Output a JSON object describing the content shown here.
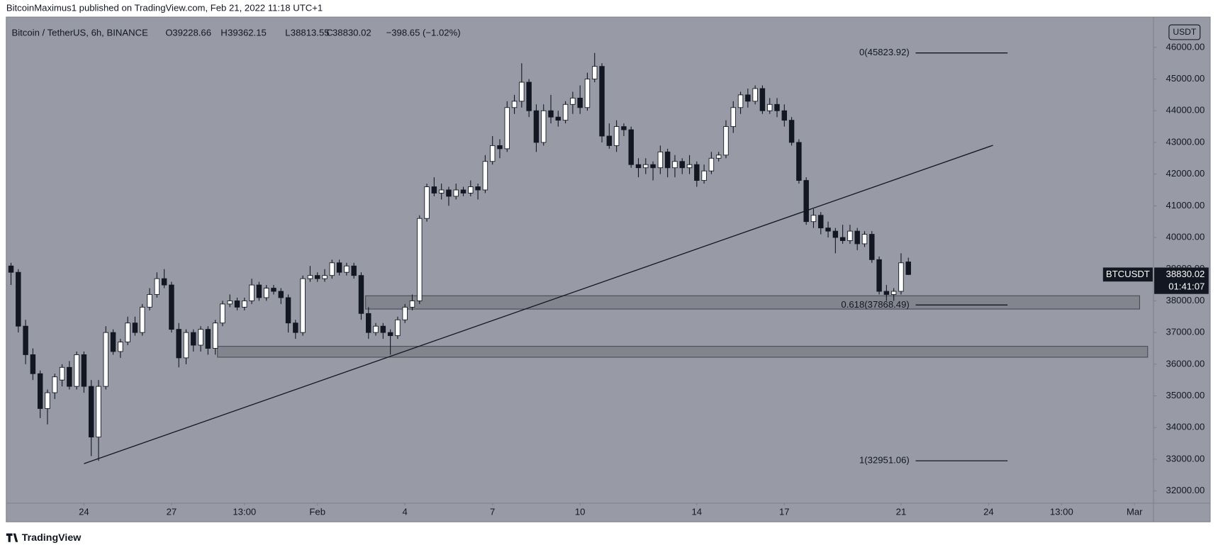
{
  "header": {
    "publisher": "BitcoinMaximus1 published on TradingView.com, Feb 21, 2022 11:18 UTC+1",
    "brand": "TradingView"
  },
  "chart_data": {
    "type": "candlestick",
    "symbol": "Bitcoin / TetherUS, 6h, BINANCE",
    "ohlc_letters": [
      "O",
      "H",
      "L",
      "C"
    ],
    "change": "−398.65 (−1.02%)",
    "currency": "USDT",
    "ticker": "BTCUSDT",
    "countdown": "01:41:07",
    "up_color": "#ffffff",
    "down_color": "#131722",
    "xlim": [
      -0.65,
      156.6
    ],
    "ylim": [
      31613,
      46956
    ],
    "xticks": [
      {
        "value": 10,
        "label": "24"
      },
      {
        "value": 22,
        "label": "27"
      },
      {
        "value": 32,
        "label": "13:00"
      },
      {
        "value": 42,
        "label": "Feb"
      },
      {
        "value": 54,
        "label": "4"
      },
      {
        "value": 66,
        "label": "7"
      },
      {
        "value": 78,
        "label": "10"
      },
      {
        "value": 94,
        "label": "14"
      },
      {
        "value": 106,
        "label": "17"
      },
      {
        "value": 122,
        "label": "21"
      },
      {
        "value": 134,
        "label": "24"
      },
      {
        "value": 144,
        "label": "13:00"
      },
      {
        "value": 154,
        "label": "Mar"
      }
    ],
    "yticks": [
      {
        "value": 32000,
        "label": "32000.00"
      },
      {
        "value": 33000,
        "label": "33000.00"
      },
      {
        "value": 34000,
        "label": "34000.00"
      },
      {
        "value": 35000,
        "label": "35000.00"
      },
      {
        "value": 36000,
        "label": "36000.00"
      },
      {
        "value": 37000,
        "label": "37000.00"
      },
      {
        "value": 38000,
        "label": "38000.00"
      },
      {
        "value": 39000,
        "label": "39000.00"
      },
      {
        "value": 40000,
        "label": "40000.00"
      },
      {
        "value": 41000,
        "label": "41000.00"
      },
      {
        "value": 42000,
        "label": "42000.00"
      },
      {
        "value": 43000,
        "label": "43000.00"
      },
      {
        "value": 44000,
        "label": "44000.00"
      },
      {
        "value": 45000,
        "label": "45000.00"
      },
      {
        "value": 46000,
        "label": "46000.00"
      }
    ],
    "grid": false,
    "trendline": {
      "x": [
        10,
        134.6
      ],
      "y": [
        32860,
        42910
      ]
    },
    "zones": [
      {
        "x": [
          48.6,
          154.7
        ],
        "y": [
          37740,
          38160
        ]
      },
      {
        "x": [
          28.3,
          155.8
        ],
        "y": [
          36221,
          36564
        ]
      }
    ],
    "fib_levels": [
      {
        "label": "0(45823.92)",
        "price": 45823.92,
        "x": [
          124,
          136.6
        ]
      },
      {
        "label": "0.618(37868.49)",
        "price": 37868.49,
        "x": [
          124,
          136.6
        ]
      },
      {
        "label": "1(32951.06)",
        "price": 32951.06,
        "x": [
          124,
          136.6
        ]
      }
    ],
    "ohlc": [
      [
        39100,
        39200,
        38500,
        38900
      ],
      [
        38900,
        39000,
        37000,
        37200
      ],
      [
        37200,
        37400,
        36000,
        36300
      ],
      [
        36300,
        36500,
        35500,
        35700
      ],
      [
        35700,
        35800,
        34300,
        34600
      ],
      [
        34600,
        35200,
        34100,
        35100
      ],
      [
        35100,
        35700,
        34900,
        35600
      ],
      [
        35500,
        36000,
        35300,
        35900
      ],
      [
        35900,
        36100,
        35200,
        35300
      ],
      [
        35300,
        36400,
        35200,
        36300
      ],
      [
        36300,
        36400,
        35100,
        35300
      ],
      [
        35300,
        35500,
        33100,
        33700
      ],
      [
        33700,
        35500,
        32950,
        35300
      ],
      [
        35300,
        37200,
        35200,
        37000
      ],
      [
        37000,
        37100,
        36300,
        36400
      ],
      [
        36400,
        36800,
        36200,
        36700
      ],
      [
        36700,
        37500,
        36600,
        37300
      ],
      [
        37300,
        37500,
        36900,
        37000
      ],
      [
        37000,
        37900,
        36900,
        37800
      ],
      [
        37800,
        38400,
        37700,
        38200
      ],
      [
        38200,
        38900,
        38100,
        38700
      ],
      [
        38700,
        39000,
        38400,
        38500
      ],
      [
        38500,
        38600,
        37000,
        37100
      ],
      [
        37100,
        37300,
        35900,
        36200
      ],
      [
        36200,
        37100,
        36000,
        37000
      ],
      [
        37000,
        37100,
        36400,
        36600
      ],
      [
        36600,
        37200,
        36400,
        37100
      ],
      [
        37100,
        37200,
        36300,
        36500
      ],
      [
        36500,
        37400,
        36300,
        37300
      ],
      [
        37300,
        38000,
        37200,
        37900
      ],
      [
        37900,
        38200,
        37800,
        38000
      ],
      [
        38000,
        38100,
        37700,
        37800
      ],
      [
        37800,
        38100,
        37700,
        38000
      ],
      [
        38000,
        38700,
        37900,
        38500
      ],
      [
        38500,
        38600,
        38000,
        38100
      ],
      [
        38100,
        38500,
        38000,
        38400
      ],
      [
        38400,
        38500,
        38200,
        38300
      ],
      [
        38300,
        38400,
        37900,
        38100
      ],
      [
        38100,
        38200,
        37000,
        37300
      ],
      [
        37300,
        37400,
        36800,
        37000
      ],
      [
        37000,
        38800,
        36900,
        38700
      ],
      [
        38700,
        39100,
        38600,
        38800
      ],
      [
        38800,
        38900,
        38600,
        38700
      ],
      [
        38700,
        39000,
        38600,
        38800
      ],
      [
        38800,
        39300,
        38700,
        39200
      ],
      [
        39200,
        39300,
        38800,
        38900
      ],
      [
        38900,
        39200,
        38800,
        39100
      ],
      [
        39100,
        39200,
        38700,
        38800
      ],
      [
        38800,
        38900,
        37400,
        37600
      ],
      [
        37600,
        37800,
        36800,
        37000
      ],
      [
        37000,
        37300,
        36900,
        37200
      ],
      [
        37200,
        37300,
        36800,
        37000
      ],
      [
        37000,
        37100,
        36300,
        36900
      ],
      [
        36900,
        37500,
        36800,
        37400
      ],
      [
        37400,
        37900,
        37300,
        37800
      ],
      [
        37800,
        38200,
        37700,
        38000
      ],
      [
        38000,
        40700,
        37900,
        40600
      ],
      [
        40600,
        41700,
        40500,
        41600
      ],
      [
        41600,
        41900,
        41300,
        41400
      ],
      [
        41400,
        41700,
        41200,
        41500
      ],
      [
        41500,
        41600,
        41000,
        41300
      ],
      [
        41300,
        41700,
        41200,
        41500
      ],
      [
        41500,
        41600,
        41300,
        41400
      ],
      [
        41400,
        41800,
        41300,
        41600
      ],
      [
        41600,
        41700,
        41200,
        41500
      ],
      [
        41500,
        42600,
        41400,
        42400
      ],
      [
        42400,
        43200,
        42300,
        42900
      ],
      [
        42900,
        43100,
        42500,
        42800
      ],
      [
        42800,
        44300,
        42700,
        44100
      ],
      [
        44100,
        44500,
        43900,
        44300
      ],
      [
        44300,
        45500,
        44100,
        44900
      ],
      [
        44900,
        45000,
        43800,
        44000
      ],
      [
        44000,
        44200,
        42700,
        43000
      ],
      [
        43000,
        44200,
        42900,
        44000
      ],
      [
        44000,
        44500,
        43600,
        43800
      ],
      [
        43800,
        44000,
        43500,
        43700
      ],
      [
        43700,
        44300,
        43600,
        44200
      ],
      [
        44200,
        44600,
        43900,
        44400
      ],
      [
        44400,
        44800,
        43900,
        44100
      ],
      [
        44100,
        45200,
        44000,
        45000
      ],
      [
        45000,
        45824,
        44900,
        45400
      ],
      [
        45400,
        45500,
        43000,
        43200
      ],
      [
        43200,
        43600,
        42800,
        42900
      ],
      [
        42900,
        43700,
        42700,
        43500
      ],
      [
        43500,
        43600,
        43200,
        43400
      ],
      [
        43400,
        43500,
        42200,
        42300
      ],
      [
        42300,
        42500,
        41900,
        42200
      ],
      [
        42200,
        42500,
        42000,
        42300
      ],
      [
        42300,
        42400,
        41800,
        42200
      ],
      [
        42200,
        42900,
        42000,
        42700
      ],
      [
        42700,
        42800,
        41900,
        42200
      ],
      [
        42200,
        42600,
        41900,
        42400
      ],
      [
        42400,
        42500,
        42000,
        42200
      ],
      [
        42200,
        42600,
        42000,
        42300
      ],
      [
        42300,
        42400,
        41600,
        41800
      ],
      [
        41800,
        42300,
        41700,
        42100
      ],
      [
        42100,
        42700,
        42000,
        42500
      ],
      [
        42500,
        42700,
        42400,
        42600
      ],
      [
        42600,
        43700,
        42500,
        43500
      ],
      [
        43500,
        44300,
        43300,
        44100
      ],
      [
        44100,
        44600,
        43900,
        44500
      ],
      [
        44500,
        44700,
        44100,
        44300
      ],
      [
        44300,
        44800,
        44200,
        44700
      ],
      [
        44700,
        44800,
        43900,
        44000
      ],
      [
        44000,
        44400,
        43900,
        44200
      ],
      [
        44200,
        44400,
        43800,
        44000
      ],
      [
        44000,
        44200,
        43500,
        43700
      ],
      [
        43700,
        43800,
        42900,
        43000
      ],
      [
        43000,
        43100,
        41700,
        41800
      ],
      [
        41800,
        41900,
        40400,
        40500
      ],
      [
        40500,
        40900,
        40300,
        40700
      ],
      [
        40700,
        40800,
        40100,
        40300
      ],
      [
        40300,
        40500,
        40000,
        40200
      ],
      [
        40200,
        40300,
        39500,
        40000
      ],
      [
        40000,
        40400,
        39800,
        39900
      ],
      [
        39900,
        40400,
        39800,
        40200
      ],
      [
        40200,
        40300,
        39600,
        39800
      ],
      [
        39800,
        40200,
        39700,
        40100
      ],
      [
        40100,
        40200,
        39200,
        39300
      ],
      [
        39300,
        39400,
        38200,
        38300
      ],
      [
        38300,
        38500,
        38000,
        38200
      ],
      [
        38200,
        38400,
        38000,
        38300
      ],
      [
        38300,
        39500,
        38200,
        39200
      ],
      [
        39228.66,
        39362.15,
        38813.55,
        38830.02
      ]
    ]
  }
}
